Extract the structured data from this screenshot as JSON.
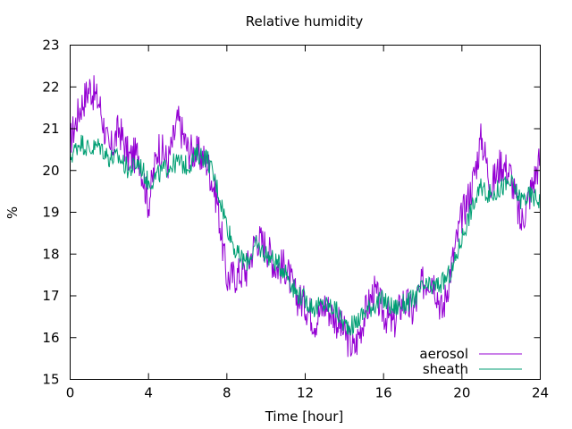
{
  "chart_data": {
    "type": "line",
    "title": "Relative humidity",
    "xlabel": "Time [hour]",
    "ylabel": "%",
    "xlim": [
      0,
      24
    ],
    "ylim": [
      15,
      23
    ],
    "xticks": [
      0,
      4,
      8,
      12,
      16,
      20,
      24
    ],
    "yticks": [
      15,
      16,
      17,
      18,
      19,
      20,
      21,
      22,
      23
    ],
    "grid": false,
    "legend_position": "bottom-right",
    "series": [
      {
        "name": "aerosol",
        "color": "#9400d3",
        "x": [
          0,
          0.5,
          1,
          1.5,
          2,
          2.5,
          3,
          3.5,
          4,
          4.5,
          5,
          5.5,
          6,
          6.5,
          7,
          7.5,
          8,
          8.5,
          9,
          9.5,
          10,
          10.5,
          11,
          11.5,
          12,
          12.5,
          13,
          13.5,
          14,
          14.5,
          15,
          15.5,
          16,
          16.5,
          17,
          17.5,
          18,
          18.5,
          19,
          19.5,
          20,
          20.5,
          21,
          21.5,
          22,
          22.5,
          23,
          23.5,
          24
        ],
        "y": [
          20.7,
          21.5,
          22.0,
          21.6,
          20.4,
          21.0,
          20.3,
          20.4,
          19.2,
          20.6,
          20.2,
          21.2,
          20.5,
          20.4,
          20.2,
          19.3,
          17.4,
          17.5,
          17.6,
          18.4,
          18.2,
          17.7,
          17.7,
          17.0,
          16.8,
          16.4,
          16.8,
          16.5,
          16.1,
          15.7,
          16.5,
          17.1,
          16.6,
          16.3,
          16.9,
          16.6,
          17.3,
          17.5,
          16.6,
          17.8,
          18.9,
          19.6,
          20.8,
          19.6,
          20.2,
          19.9,
          18.7,
          19.5,
          20.3
        ]
      },
      {
        "name": "sheath",
        "color": "#009e73",
        "x": [
          0,
          0.5,
          1,
          1.5,
          2,
          2.5,
          3,
          3.5,
          4,
          4.5,
          5,
          5.5,
          6,
          6.5,
          7,
          7.5,
          8,
          8.5,
          9,
          9.5,
          10,
          10.5,
          11,
          11.5,
          12,
          12.5,
          13,
          13.5,
          14,
          14.5,
          15,
          15.5,
          16,
          16.5,
          17,
          17.5,
          18,
          18.5,
          19,
          19.5,
          20,
          20.5,
          21,
          21.5,
          22,
          22.5,
          23,
          23.5,
          24
        ],
        "y": [
          20.3,
          20.7,
          20.5,
          20.6,
          20.3,
          20.3,
          20.0,
          20.2,
          19.7,
          19.9,
          20.1,
          20.2,
          20.1,
          20.4,
          20.3,
          19.6,
          18.7,
          18.0,
          17.8,
          18.2,
          18.0,
          17.8,
          17.6,
          17.1,
          16.9,
          16.7,
          16.8,
          16.7,
          16.3,
          16.3,
          16.6,
          16.8,
          16.9,
          16.7,
          16.8,
          16.9,
          17.2,
          17.2,
          17.3,
          17.6,
          18.4,
          19.1,
          19.6,
          19.4,
          19.6,
          19.7,
          19.3,
          19.4,
          19.3
        ]
      }
    ]
  }
}
